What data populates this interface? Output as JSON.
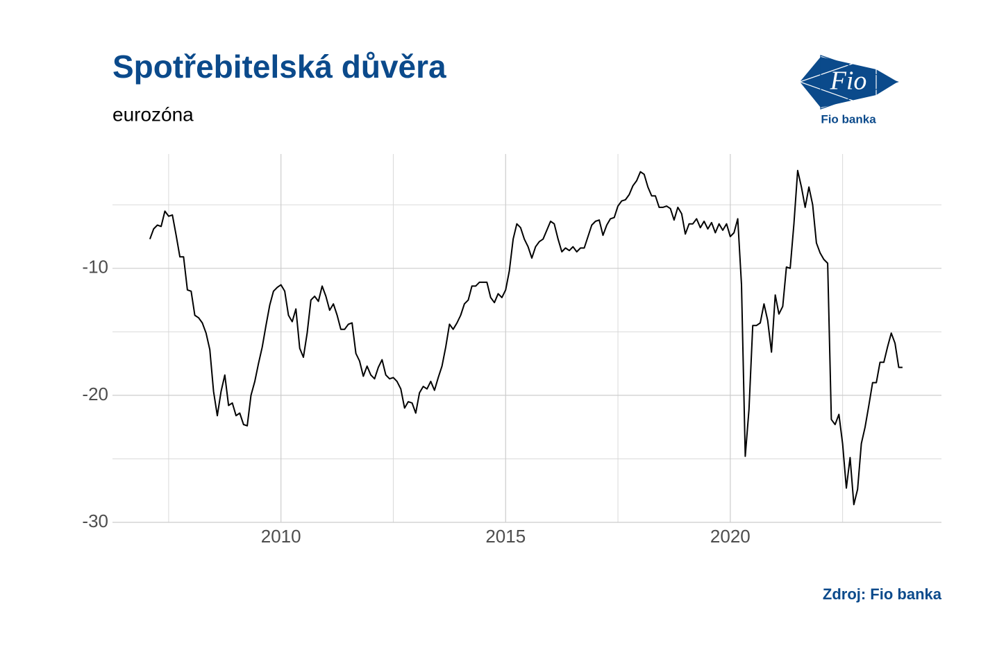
{
  "title": "Spotřebitelská důvěra",
  "subtitle": "eurozóna",
  "logo": {
    "mark": "Fio",
    "caption": "Fio banka"
  },
  "source": "Zdroj: Fio banka",
  "chart_data": {
    "type": "line",
    "xlim": [
      2006.25,
      2024.7
    ],
    "ylim": [
      -30,
      -1
    ],
    "xticks": [
      2010,
      2015,
      2020
    ],
    "yticks": [
      -30,
      -20,
      -10
    ],
    "minor_xticks": [
      2007.5,
      2012.5,
      2017.5,
      2022.5
    ],
    "minor_yticks": [
      -25,
      -15,
      -5
    ],
    "grid": true,
    "x": [
      2007.083,
      2007.167,
      2007.25,
      2007.333,
      2007.417,
      2007.5,
      2007.583,
      2007.667,
      2007.75,
      2007.833,
      2007.917,
      2008,
      2008.083,
      2008.167,
      2008.25,
      2008.333,
      2008.417,
      2008.5,
      2008.583,
      2008.667,
      2008.75,
      2008.833,
      2008.917,
      2009,
      2009.083,
      2009.167,
      2009.25,
      2009.333,
      2009.417,
      2009.5,
      2009.583,
      2009.667,
      2009.75,
      2009.833,
      2009.917,
      2010,
      2010.083,
      2010.167,
      2010.25,
      2010.333,
      2010.417,
      2010.5,
      2010.583,
      2010.667,
      2010.75,
      2010.833,
      2010.917,
      2011,
      2011.083,
      2011.167,
      2011.25,
      2011.333,
      2011.417,
      2011.5,
      2011.583,
      2011.667,
      2011.75,
      2011.833,
      2011.917,
      2012,
      2012.083,
      2012.167,
      2012.25,
      2012.333,
      2012.417,
      2012.5,
      2012.583,
      2012.667,
      2012.75,
      2012.833,
      2012.917,
      2013,
      2013.083,
      2013.167,
      2013.25,
      2013.333,
      2013.417,
      2013.5,
      2013.583,
      2013.667,
      2013.75,
      2013.833,
      2013.917,
      2014,
      2014.083,
      2014.167,
      2014.25,
      2014.333,
      2014.417,
      2014.5,
      2014.583,
      2014.667,
      2014.75,
      2014.833,
      2014.917,
      2015,
      2015.083,
      2015.167,
      2015.25,
      2015.333,
      2015.417,
      2015.5,
      2015.583,
      2015.667,
      2015.75,
      2015.833,
      2015.917,
      2016,
      2016.083,
      2016.167,
      2016.25,
      2016.333,
      2016.417,
      2016.5,
      2016.583,
      2016.667,
      2016.75,
      2016.833,
      2016.917,
      2017,
      2017.083,
      2017.167,
      2017.25,
      2017.333,
      2017.417,
      2017.5,
      2017.583,
      2017.667,
      2017.75,
      2017.833,
      2017.917,
      2018,
      2018.083,
      2018.167,
      2018.25,
      2018.333,
      2018.417,
      2018.5,
      2018.583,
      2018.667,
      2018.75,
      2018.833,
      2018.917,
      2019,
      2019.083,
      2019.167,
      2019.25,
      2019.333,
      2019.417,
      2019.5,
      2019.583,
      2019.667,
      2019.75,
      2019.833,
      2019.917,
      2020,
      2020.083,
      2020.167,
      2020.25,
      2020.333,
      2020.417,
      2020.5,
      2020.583,
      2020.667,
      2020.75,
      2020.833,
      2020.917,
      2021,
      2021.083,
      2021.167,
      2021.25,
      2021.333,
      2021.417,
      2021.5,
      2021.583,
      2021.667,
      2021.75,
      2021.833,
      2021.917,
      2022,
      2022.083,
      2022.167,
      2022.25,
      2022.333,
      2022.417,
      2022.5,
      2022.583,
      2022.667,
      2022.75,
      2022.833,
      2022.917,
      2023,
      2023.083,
      2023.167,
      2023.25,
      2023.333,
      2023.417,
      2023.5,
      2023.583,
      2023.667,
      2023.75,
      2023.833
    ],
    "series": [
      {
        "color": "#000000",
        "values": [
          -7.7,
          -6.9,
          -6.6,
          -6.7,
          -5.5,
          -5.9,
          -5.8,
          -7.4,
          -9.1,
          -9.1,
          -11.7,
          -11.8,
          -13.7,
          -13.9,
          -14.3,
          -15.1,
          -16.4,
          -19.7,
          -21.6,
          -19.7,
          -18.4,
          -20.8,
          -20.6,
          -21.6,
          -21.4,
          -22.3,
          -22.4,
          -20.0,
          -18.9,
          -17.5,
          -16.2,
          -14.5,
          -12.9,
          -11.8,
          -11.5,
          -11.3,
          -11.8,
          -13.7,
          -14.2,
          -13.2,
          -16.3,
          -17.0,
          -15.1,
          -12.5,
          -12.2,
          -12.6,
          -11.4,
          -12.2,
          -13.3,
          -12.8,
          -13.7,
          -14.8,
          -14.8,
          -14.4,
          -14.3,
          -16.7,
          -17.3,
          -18.5,
          -17.7,
          -18.4,
          -18.7,
          -17.8,
          -17.2,
          -18.4,
          -18.7,
          -18.6,
          -18.9,
          -19.5,
          -21.0,
          -20.5,
          -20.6,
          -21.4,
          -19.8,
          -19.3,
          -19.5,
          -18.9,
          -19.6,
          -18.6,
          -17.7,
          -16.2,
          -14.4,
          -14.8,
          -14.3,
          -13.7,
          -12.8,
          -12.5,
          -11.4,
          -11.4,
          -11.1,
          -11.1,
          -11.1,
          -12.3,
          -12.7,
          -12.0,
          -12.3,
          -11.7,
          -10.2,
          -7.7,
          -6.5,
          -6.8,
          -7.7,
          -8.3,
          -9.2,
          -8.3,
          -7.9,
          -7.7,
          -7.0,
          -6.3,
          -6.5,
          -7.7,
          -8.7,
          -8.4,
          -8.6,
          -8.3,
          -8.7,
          -8.4,
          -8.4,
          -7.5,
          -6.6,
          -6.3,
          -6.2,
          -7.4,
          -6.6,
          -6.1,
          -6.0,
          -5.1,
          -4.7,
          -4.6,
          -4.2,
          -3.5,
          -3.1,
          -2.4,
          -2.6,
          -3.6,
          -4.3,
          -4.3,
          -5.2,
          -5.2,
          -5.1,
          -5.3,
          -6.2,
          -5.2,
          -5.7,
          -7.3,
          -6.5,
          -6.5,
          -6.1,
          -6.8,
          -6.3,
          -6.9,
          -6.4,
          -7.2,
          -6.5,
          -7.0,
          -6.5,
          -7.5,
          -7.2,
          -6.1,
          -11.3,
          -24.8,
          -21.1,
          -14.5,
          -14.5,
          -14.3,
          -12.8,
          -14.1,
          -16.6,
          -12.1,
          -13.6,
          -13.0,
          -9.9,
          -10.0,
          -6.5,
          -2.3,
          -3.6,
          -5.2,
          -3.6,
          -5.0,
          -8.0,
          -8.8,
          -9.3,
          -9.6,
          -21.9,
          -22.3,
          -21.5,
          -23.8,
          -27.3,
          -24.9,
          -28.6,
          -27.4,
          -23.8,
          -22.5,
          -20.8,
          -19.0,
          -19.0,
          -17.4,
          -17.4,
          -16.2,
          -15.1,
          -15.9,
          -17.8,
          -17.8
        ]
      }
    ]
  }
}
